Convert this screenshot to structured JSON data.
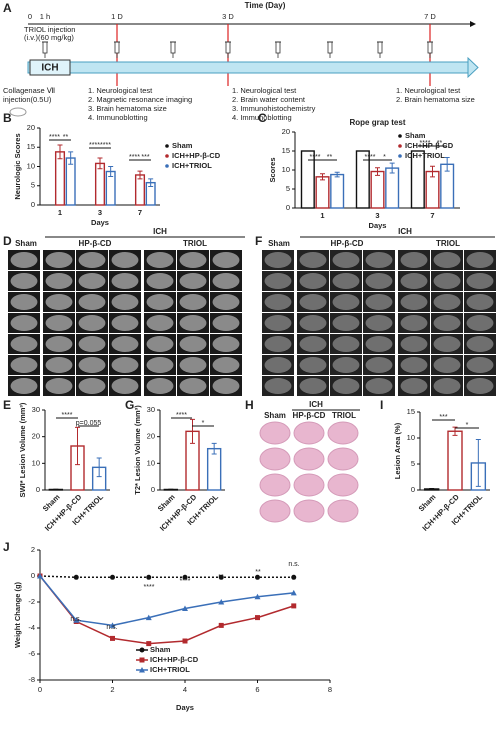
{
  "panels": [
    "A",
    "B",
    "C",
    "D",
    "E",
    "F",
    "G",
    "H",
    "I",
    "J"
  ],
  "timeline": {
    "axis_title": "Time (Day)",
    "ticks": [
      "0",
      "1 h",
      "1 D",
      "3 D",
      "7 D"
    ],
    "injection": [
      "TRIOL injection",
      "(i.v.)(60 mg/kg)"
    ],
    "bar_label": "ICH",
    "model": [
      "Collagenase Ⅶ",
      "injection(0.5U)"
    ],
    "day1_tests": [
      "1. Neurological test",
      "2. Magnetic resonance imaging",
      "3. Brain hematoma size",
      "4. Immunoblotting"
    ],
    "day3_tests": [
      "1. Neurological test",
      "2. Brain water content",
      "3. Immunohistochemistry",
      "4. Immunoblotting"
    ],
    "day7_tests": [
      "1. Neurological test",
      "2. Brain hematoma size"
    ]
  },
  "mri_swi": {
    "group": "ICH",
    "columns": [
      "Sham",
      "HP-β-CD",
      "TRIOL"
    ]
  },
  "mri_t2": {
    "group": "ICH",
    "columns": [
      "Sham",
      "HP-β-CD",
      "TRIOL"
    ]
  },
  "histology": {
    "group": "ICH",
    "columns": [
      "Sham",
      "HP-β-CD",
      "TRIOL"
    ]
  },
  "chart_data": [
    {
      "type": "bar",
      "y_label": "Neurologic Scores",
      "x_label": "Days",
      "categories": [
        "1",
        "3",
        "7"
      ],
      "series": [
        {
          "name": "Sham",
          "color": "#111111",
          "values": [
            0,
            0,
            0
          ],
          "errors": [
            0,
            0,
            0
          ]
        },
        {
          "name": "ICH+HP-β-CD",
          "color": "#b22a2e",
          "values": [
            13.8,
            10.8,
            7.8
          ],
          "errors": [
            1.8,
            1.4,
            1.0
          ]
        },
        {
          "name": "ICH+TRIOL",
          "color": "#3a6fb8",
          "values": [
            12.2,
            8.7,
            5.8
          ],
          "errors": [
            1.6,
            1.3,
            1.0
          ]
        }
      ],
      "ylim": [
        0,
        20
      ],
      "yticks": [
        0,
        5,
        10,
        15,
        20
      ],
      "annotations": [
        "****",
        "**",
        "****",
        "****",
        "****",
        "***"
      ]
    },
    {
      "type": "bar",
      "title": "Rope grap test",
      "y_label": "Scores",
      "x_label": "Days",
      "categories": [
        "1",
        "3",
        "7"
      ],
      "series": [
        {
          "name": "Sham",
          "color": "#111111",
          "values": [
            15,
            15,
            15
          ],
          "errors": [
            0,
            0,
            0
          ]
        },
        {
          "name": "ICH+HP-β-CD",
          "color": "#b22a2e",
          "values": [
            8.2,
            9.6,
            9.6
          ],
          "errors": [
            0.8,
            1.0,
            1.4
          ]
        },
        {
          "name": "ICH+TRIOL",
          "color": "#3a6fb8",
          "values": [
            8.8,
            10.5,
            11.5
          ],
          "errors": [
            0.6,
            1.3,
            1.8
          ]
        }
      ],
      "ylim": [
        0,
        20
      ],
      "yticks": [
        0,
        5,
        10,
        15,
        20
      ],
      "annotations": [
        "****",
        "**",
        "****",
        "*",
        "****",
        "**"
      ]
    },
    {
      "type": "bar",
      "y_label": "SWI* Lesion Volume (mm³)",
      "categories": [
        "Sham",
        "ICH+HP-β-CD",
        "ICH+TRIOL"
      ],
      "values": [
        0.2,
        16.5,
        8.5
      ],
      "errors": [
        0.1,
        7,
        3.5
      ],
      "colors": [
        "#111111",
        "#b22a2e",
        "#3a6fb8"
      ],
      "ylim": [
        0,
        30
      ],
      "yticks": [
        0,
        10,
        20,
        30
      ],
      "annotations": [
        "****",
        "p=0.055"
      ]
    },
    {
      "type": "bar",
      "y_label": "T2* Lesion Volume (mm³)",
      "categories": [
        "Sham",
        "ICH+HP-β-CD",
        "ICH+TRIOL"
      ],
      "values": [
        0.2,
        22,
        15.5
      ],
      "errors": [
        0.1,
        4.5,
        2
      ],
      "colors": [
        "#111111",
        "#b22a2e",
        "#3a6fb8"
      ],
      "ylim": [
        0,
        30
      ],
      "yticks": [
        0,
        10,
        20,
        30
      ],
      "annotations": [
        "****",
        "*"
      ]
    },
    {
      "type": "bar",
      "y_label": "Lesion Area (%)",
      "categories": [
        "Sham",
        "ICH+HP-β-CD",
        "ICH+TRIOL"
      ],
      "values": [
        0.2,
        11.3,
        5.2
      ],
      "errors": [
        0.1,
        0.8,
        4.5
      ],
      "colors": [
        "#111111",
        "#b22a2e",
        "#3a6fb8"
      ],
      "ylim": [
        0,
        15
      ],
      "yticks": [
        0,
        5,
        10,
        15
      ],
      "annotations": [
        "***",
        "*"
      ]
    },
    {
      "type": "line",
      "y_label": "Weight Change (g)",
      "x_label": "Days",
      "x": [
        0,
        1,
        2,
        3,
        4,
        5,
        6,
        7
      ],
      "xlim": [
        0,
        8
      ],
      "xticks": [
        0,
        2,
        4,
        6,
        8
      ],
      "series": [
        {
          "name": "Sham",
          "color": "#111111",
          "marker": "circle",
          "dash": true,
          "values": [
            0,
            -0.1,
            -0.1,
            -0.1,
            -0.1,
            -0.1,
            -0.1,
            -0.1
          ]
        },
        {
          "name": "ICH+HP-β-CD",
          "color": "#b22a2e",
          "marker": "square",
          "dash": false,
          "values": [
            0,
            -3.5,
            -4.8,
            -5.2,
            -5,
            -3.8,
            -3.2,
            -2.3
          ]
        },
        {
          "name": "ICH+TRIOL",
          "color": "#3a6fb8",
          "marker": "triangle",
          "dash": false,
          "values": [
            0,
            -3.4,
            -3.8,
            -3.2,
            -2.5,
            -2,
            -1.6,
            -1.3
          ]
        }
      ],
      "ylim": [
        -8,
        2
      ],
      "yticks": [
        -8,
        -6,
        -4,
        -2,
        0,
        2
      ],
      "annotations": [
        "n.s.",
        "n.s.",
        "****",
        "****",
        "**",
        "**",
        "n.s."
      ]
    }
  ]
}
